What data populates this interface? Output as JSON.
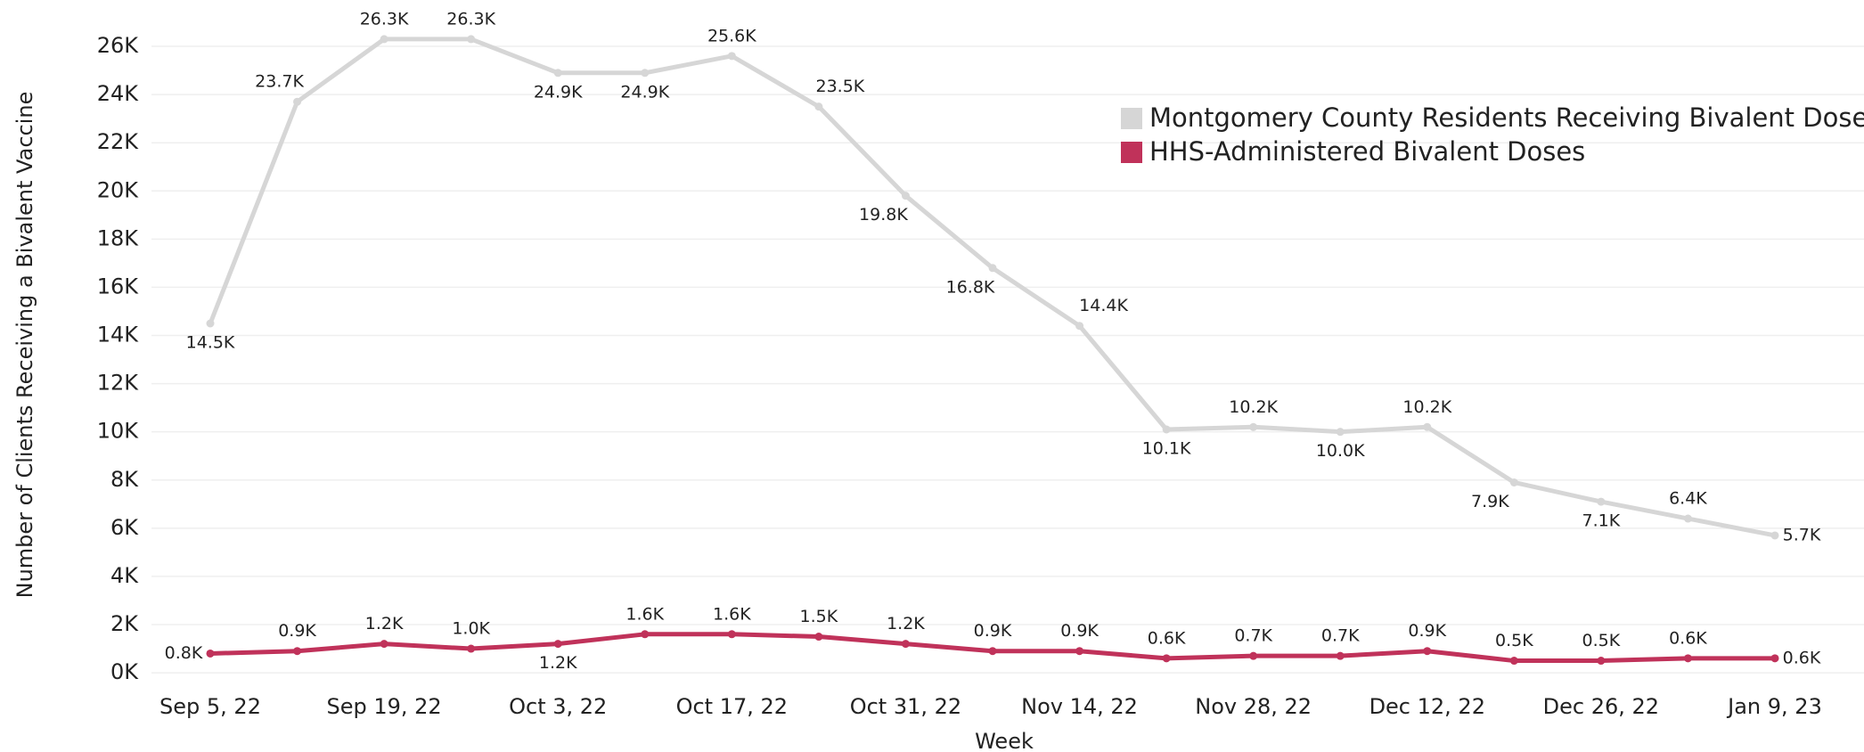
{
  "chart_data": {
    "type": "line",
    "x_label": "Week",
    "y_label": "Number of Clients Receiving a Bivalent Vaccine",
    "categories": [
      "Sep 5, 22",
      null,
      "Sep 19, 22",
      null,
      "Oct 3, 22",
      null,
      "Oct 17, 22",
      null,
      "Oct 31, 22",
      null,
      "Nov 14, 22",
      null,
      "Nov 28, 22",
      null,
      "Dec 12, 22",
      null,
      "Dec 26, 22",
      null,
      "Jan 9, 23"
    ],
    "series": [
      {
        "name": "Montgomery County Residents Receiving Bivalent Doses",
        "color": "#d6d6d6",
        "values": [
          14500,
          23700,
          26300,
          26300,
          24900,
          24900,
          25600,
          23500,
          19800,
          16800,
          14400,
          10100,
          10200,
          10000,
          10200,
          7900,
          7100,
          6400,
          5700
        ],
        "value_labels": [
          "14.5K",
          "23.7K",
          "26.3K",
          "26.3K",
          "24.9K",
          "24.9K",
          "25.6K",
          "23.5K",
          "19.8K",
          "16.8K",
          "14.4K",
          "10.1K",
          "10.2K",
          "10.0K",
          "10.2K",
          "7.9K",
          "7.1K",
          "6.4K",
          "5.7K"
        ]
      },
      {
        "name": "HHS-Administered Bivalent Doses",
        "color": "#c0325a",
        "values": [
          800,
          900,
          1200,
          1000,
          1200,
          1600,
          1600,
          1500,
          1200,
          900,
          900,
          600,
          700,
          700,
          900,
          500,
          500,
          600,
          600
        ],
        "value_labels": [
          "0.8K",
          "0.9K",
          "1.2K",
          "1.0K",
          "1.2K",
          "1.6K",
          "1.6K",
          "1.5K",
          "1.2K",
          "0.9K",
          "0.9K",
          "0.6K",
          "0.7K",
          "0.7K",
          "0.9K",
          "0.5K",
          "0.5K",
          "0.6K",
          "0.6K"
        ]
      }
    ],
    "ylim": [
      -700,
      27000
    ],
    "yticks": [
      {
        "value": 0,
        "label": "0K"
      },
      {
        "value": 2000,
        "label": "2K"
      },
      {
        "value": 4000,
        "label": "4K"
      },
      {
        "value": 6000,
        "label": "6K"
      },
      {
        "value": 8000,
        "label": "8K"
      },
      {
        "value": 10000,
        "label": "10K"
      },
      {
        "value": 12000,
        "label": "12K"
      },
      {
        "value": 14000,
        "label": "14K"
      },
      {
        "value": 16000,
        "label": "16K"
      },
      {
        "value": 18000,
        "label": "18K"
      },
      {
        "value": 20000,
        "label": "20K"
      },
      {
        "value": 22000,
        "label": "22K"
      },
      {
        "value": 24000,
        "label": "24K"
      },
      {
        "value": 26000,
        "label": "26K"
      }
    ],
    "grid": true,
    "legend": "upper right"
  }
}
